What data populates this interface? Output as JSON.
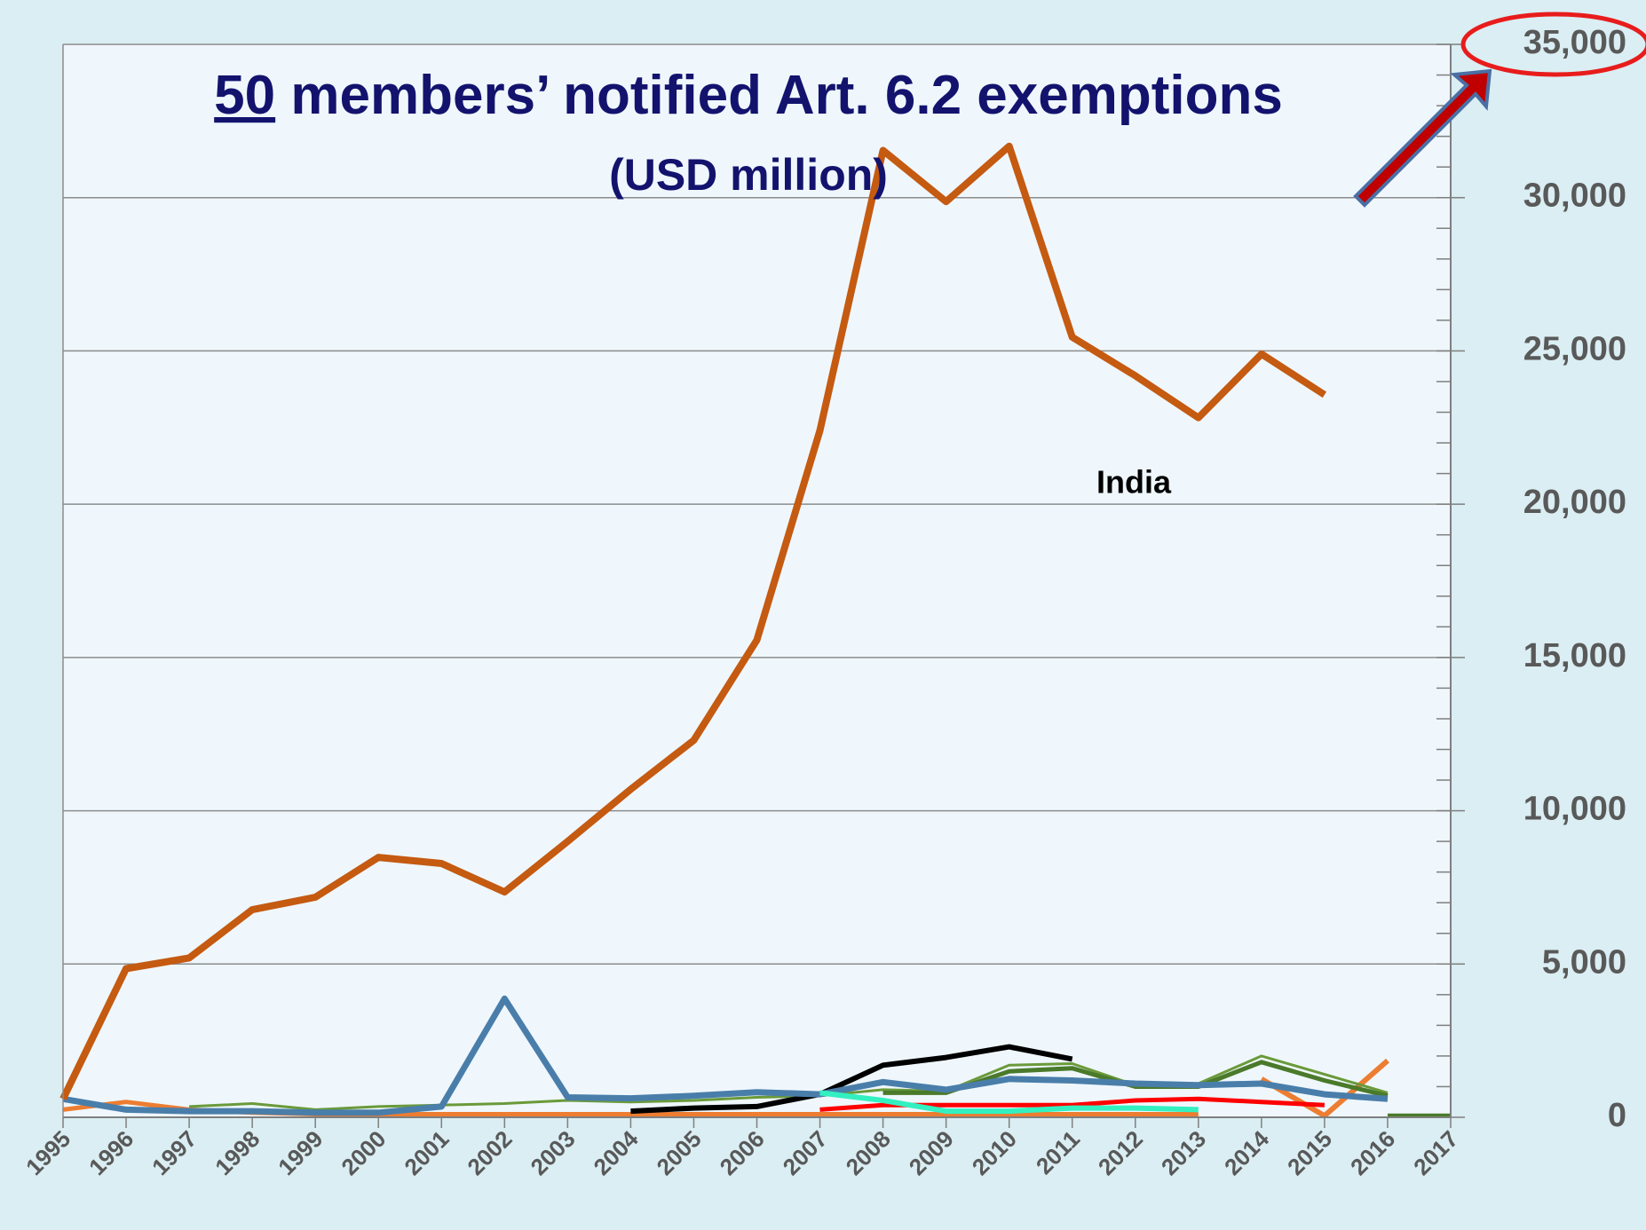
{
  "chart_data": {
    "type": "line",
    "title_emphasis": "50",
    "title": "members’ notified Art. 6.2 exemptions",
    "subtitle": "(USD million)",
    "annotation": "India",
    "categories": [
      "1995",
      "1996",
      "1997",
      "1998",
      "1999",
      "2000",
      "2001",
      "2002",
      "2003",
      "2004",
      "2005",
      "2006",
      "2007",
      "2008",
      "2009",
      "2010",
      "2011",
      "2012",
      "2013",
      "2014",
      "2015",
      "2016",
      "2017"
    ],
    "ylim": [
      0,
      35000
    ],
    "yticks": [
      0,
      {
        "value": 5000,
        "label": "5,000"
      },
      {
        "value": 10000,
        "label": "10,000"
      },
      {
        "value": 15000,
        "label": "15,000"
      },
      {
        "value": 20000,
        "label": "20,000"
      },
      {
        "value": 25000,
        "label": "25,000"
      },
      {
        "value": 30000,
        "label": "30,000"
      },
      {
        "value": 35000,
        "label": "35,000"
      }
    ],
    "minor_tick_step": 1000,
    "y_axis_side": "right",
    "grid": true,
    "series": [
      {
        "color": "#ed7d31",
        "width": 5,
        "values": [
          250,
          500,
          250,
          150,
          100,
          100,
          100,
          100,
          100,
          100,
          100,
          100,
          100,
          100,
          100,
          100,
          100,
          100,
          100,
          null,
          null,
          null,
          null
        ]
      },
      {
        "color": "#ed7d31",
        "width": 6,
        "values": [
          null,
          null,
          null,
          null,
          null,
          null,
          null,
          null,
          null,
          null,
          null,
          null,
          null,
          null,
          null,
          null,
          null,
          null,
          null,
          1250,
          50,
          1850,
          null
        ]
      },
      {
        "color": "#6a9a3a",
        "width": 3,
        "values": [
          null,
          null,
          350,
          450,
          250,
          350,
          400,
          450,
          550,
          500,
          550,
          650,
          700,
          900,
          850,
          1700,
          1750,
          1050,
          1100,
          2000,
          1400,
          800,
          null
        ]
      },
      {
        "color": "#4a7a2a",
        "width": 5,
        "values": [
          null,
          null,
          null,
          null,
          null,
          null,
          null,
          null,
          null,
          null,
          null,
          null,
          null,
          800,
          800,
          1500,
          1600,
          1000,
          1000,
          1800,
          1200,
          700,
          null
        ]
      },
      {
        "color": "#4a7a2a",
        "width": 5,
        "values": [
          null,
          null,
          null,
          null,
          null,
          null,
          null,
          null,
          null,
          null,
          null,
          null,
          null,
          null,
          null,
          null,
          null,
          null,
          null,
          null,
          null,
          50,
          50
        ]
      },
      {
        "color": "#ff0000",
        "width": 5,
        "values": [
          null,
          null,
          null,
          null,
          null,
          null,
          null,
          null,
          null,
          null,
          null,
          null,
          250,
          400,
          400,
          400,
          400,
          550,
          600,
          500,
          400,
          null,
          null
        ]
      },
      {
        "color": "#000000",
        "width": 6,
        "values": [
          null,
          null,
          null,
          null,
          null,
          null,
          null,
          null,
          null,
          200,
          300,
          350,
          750,
          1700,
          1950,
          2300,
          1900,
          null,
          null,
          null,
          null,
          null,
          null
        ]
      },
      {
        "color": "#4a7eaa",
        "width": 7,
        "values": [
          600,
          250,
          200,
          200,
          150,
          150,
          350,
          3870,
          650,
          620,
          700,
          820,
          750,
          1150,
          900,
          1250,
          1200,
          1100,
          1050,
          1100,
          750,
          600,
          null
        ]
      },
      {
        "color": "#33f0c0",
        "width": 6,
        "values": [
          null,
          null,
          null,
          null,
          null,
          null,
          null,
          null,
          null,
          null,
          null,
          null,
          800,
          550,
          200,
          200,
          300,
          300,
          250,
          null,
          null,
          null,
          null
        ]
      },
      {
        "name": "India",
        "color": "#c55a11",
        "width": 8,
        "values": [
          600,
          4850,
          5200,
          6770,
          7180,
          8480,
          8280,
          7350,
          9000,
          10700,
          12300,
          15570,
          22400,
          31540,
          29870,
          31680,
          25450,
          24190,
          22820,
          24900,
          23570,
          null,
          null
        ]
      }
    ]
  }
}
